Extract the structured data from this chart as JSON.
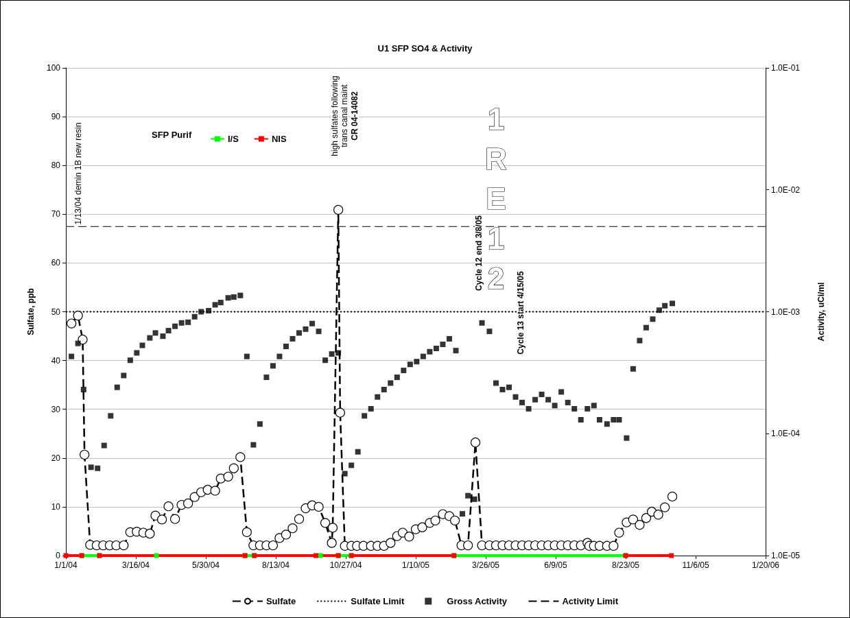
{
  "chart_data": {
    "type": "line",
    "title": "U1 SFP SO4 & Activity",
    "ylabel": "Sulfate, ppb",
    "y2label": "Activity, uCi/ml",
    "legend_title": "SFP Purif",
    "xlim": [
      "2004-01-01",
      "2006-01-20"
    ],
    "xticks": [
      {
        "value": "2004-01-01",
        "label": "1/1/04"
      },
      {
        "value": "2004-03-16",
        "label": "3/16/04"
      },
      {
        "value": "2004-05-30",
        "label": "5/30/04"
      },
      {
        "value": "2004-08-13",
        "label": "8/13/04"
      },
      {
        "value": "2004-10-27",
        "label": "10/27/04"
      },
      {
        "value": "2005-01-10",
        "label": "1/10/05"
      },
      {
        "value": "2005-03-26",
        "label": "3/26/05"
      },
      {
        "value": "2005-06-09",
        "label": "6/9/05"
      },
      {
        "value": "2005-08-23",
        "label": "8/23/05"
      },
      {
        "value": "2005-11-06",
        "label": "11/6/05"
      },
      {
        "value": "2006-01-20",
        "label": "1/20/06"
      }
    ],
    "ylim": [
      0,
      100
    ],
    "yticks": [
      0,
      10,
      20,
      30,
      40,
      50,
      60,
      70,
      80,
      90,
      100
    ],
    "y2lim": [
      1e-05,
      0.1
    ],
    "y2ticks": [
      {
        "value": 1e-05,
        "label": "1.0E-05"
      },
      {
        "value": 0.0001,
        "label": "1.0E-04"
      },
      {
        "value": 0.001,
        "label": "1.0E-03"
      },
      {
        "value": 0.01,
        "label": "1.0E-02"
      },
      {
        "value": 0.1,
        "label": "1.0E-01"
      }
    ],
    "log": "y2",
    "grid": "y",
    "legend": "bottom",
    "series": [
      {
        "name": "Sulfate",
        "color": "#000000",
        "marker": "circle",
        "line_style": "dashed",
        "x": [
          "2004-01-07",
          "2004-01-14",
          "2004-01-19",
          "2004-01-21",
          "2004-01-27",
          "2004-02-03",
          "2004-02-10",
          "2004-02-17",
          "2004-02-24",
          "2004-03-03",
          "2004-03-10",
          "2004-03-17",
          "2004-03-24",
          "2004-03-31",
          "2004-04-06",
          "2004-04-13",
          "2004-04-20",
          "2004-04-27",
          "2004-05-04",
          "2004-05-11",
          "2004-05-18",
          "2004-05-25",
          "2004-06-01",
          "2004-06-09",
          "2004-06-15",
          "2004-06-23",
          "2004-06-29",
          "2004-07-06",
          "2004-07-13",
          "2004-07-20",
          "2004-07-27",
          "2004-08-03",
          "2004-08-10",
          "2004-08-17",
          "2004-08-24",
          "2004-08-31",
          "2004-09-07",
          "2004-09-14",
          "2004-09-21",
          "2004-09-28",
          "2004-10-05",
          "2004-10-12",
          "2004-10-13",
          "2004-10-19",
          "2004-10-21",
          "2004-10-26",
          "2004-11-02",
          "2004-11-08",
          "2004-11-15",
          "2004-11-23",
          "2004-11-30",
          "2004-12-07",
          "2004-12-14",
          "2004-12-21",
          "2004-12-27",
          "2005-01-03",
          "2005-01-10",
          "2005-01-17",
          "2005-01-25",
          "2005-01-31",
          "2005-02-08",
          "2005-02-15",
          "2005-02-21",
          "2005-02-28",
          "2005-03-07",
          "2005-03-15",
          "2005-03-22",
          "2005-03-30",
          "2005-04-06",
          "2005-04-13",
          "2005-04-20",
          "2005-04-27",
          "2005-05-04",
          "2005-05-11",
          "2005-05-18",
          "2005-05-25",
          "2005-06-01",
          "2005-06-08",
          "2005-06-15",
          "2005-06-22",
          "2005-06-29",
          "2005-07-06",
          "2005-07-13",
          "2005-07-15",
          "2005-07-20",
          "2005-07-26",
          "2005-08-03",
          "2005-08-10",
          "2005-08-16",
          "2005-08-24",
          "2005-08-31",
          "2005-09-07",
          "2005-09-14",
          "2005-09-20",
          "2005-09-27",
          "2005-10-04",
          "2005-10-12"
        ],
        "values": [
          47.6,
          49.2,
          44.3,
          20.7,
          2.2,
          2.1,
          2.1,
          2.1,
          2.1,
          2.1,
          4.8,
          4.9,
          4.7,
          4.5,
          8.2,
          7.4,
          10.1,
          7.5,
          10.4,
          10.7,
          12.0,
          13.0,
          13.5,
          13.3,
          15.8,
          16.2,
          17.9,
          20.2,
          4.8,
          2.1,
          2.1,
          2.1,
          2.1,
          3.6,
          4.3,
          5.6,
          7.5,
          9.7,
          10.3,
          10.0,
          6.7,
          2.6,
          5.7,
          70.9,
          29.3,
          2.0,
          2.0,
          2.0,
          2.0,
          2.0,
          2.0,
          2.0,
          2.6,
          4.0,
          4.7,
          3.9,
          5.4,
          5.8,
          6.7,
          7.2,
          8.5,
          8.1,
          7.2,
          2.1,
          2.1,
          23.2,
          2.1,
          2.1,
          2.1,
          2.1,
          2.1,
          2.1,
          2.1,
          2.1,
          2.1,
          2.1,
          2.1,
          2.1,
          2.1,
          2.1,
          2.1,
          2.1,
          2.6,
          2.0,
          2.0,
          2.0,
          2.0,
          2.0,
          4.7,
          6.8,
          7.4,
          6.3,
          7.7,
          9.0,
          8.4,
          9.9,
          12.1
        ]
      },
      {
        "name": "Sulfate Limit",
        "color": "#000000",
        "marker": "none",
        "line_style": "dotted",
        "x": [
          "2004-01-01",
          "2006-01-20"
        ],
        "values": [
          50,
          50
        ]
      },
      {
        "name": "Gross Activity",
        "type": "scatter",
        "color": "#000000",
        "marker": "square",
        "axis": "y2",
        "x": [
          "2004-01-07",
          "2004-01-14",
          "2004-01-20",
          "2004-01-28",
          "2004-02-04",
          "2004-02-11",
          "2004-02-18",
          "2004-02-25",
          "2004-03-03",
          "2004-03-10",
          "2004-03-17",
          "2004-03-23",
          "2004-03-31",
          "2004-04-06",
          "2004-04-14",
          "2004-04-20",
          "2004-04-27",
          "2004-05-04",
          "2004-05-11",
          "2004-05-18",
          "2004-05-25",
          "2004-06-02",
          "2004-06-09",
          "2004-06-15",
          "2004-06-23",
          "2004-06-29",
          "2004-07-06",
          "2004-07-13",
          "2004-07-20",
          "2004-07-27",
          "2004-08-03",
          "2004-08-10",
          "2004-08-17",
          "2004-08-24",
          "2004-08-31",
          "2004-09-07",
          "2004-09-14",
          "2004-09-21",
          "2004-09-28",
          "2004-10-05",
          "2004-10-12",
          "2004-10-19",
          "2004-10-26",
          "2004-11-02",
          "2004-11-09",
          "2004-11-16",
          "2004-11-23",
          "2004-11-30",
          "2004-12-07",
          "2004-12-14",
          "2004-12-21",
          "2004-12-28",
          "2005-01-04",
          "2005-01-11",
          "2005-01-18",
          "2005-01-25",
          "2005-02-01",
          "2005-02-08",
          "2005-02-15",
          "2005-02-22",
          "2005-03-01",
          "2005-03-07",
          "2005-03-14",
          "2005-03-22",
          "2005-03-30",
          "2005-04-06",
          "2005-04-13",
          "2005-04-20",
          "2005-04-27",
          "2005-05-04",
          "2005-05-11",
          "2005-05-18",
          "2005-05-25",
          "2005-06-01",
          "2005-06-08",
          "2005-06-15",
          "2005-06-22",
          "2005-06-29",
          "2005-07-06",
          "2005-07-13",
          "2005-07-20",
          "2005-07-26",
          "2005-08-03",
          "2005-08-10",
          "2005-08-16",
          "2005-08-24",
          "2005-08-31",
          "2005-09-07",
          "2005-09-14",
          "2005-09-21",
          "2005-09-28",
          "2005-10-04",
          "2005-10-12"
        ],
        "values": [
          0.00043,
          0.00055,
          0.00023,
          5.3e-05,
          5.2e-05,
          8e-05,
          0.00014,
          0.00024,
          0.0003,
          0.0004,
          0.00046,
          0.00053,
          0.00061,
          0.00067,
          0.00063,
          0.0007,
          0.00076,
          0.00081,
          0.00082,
          0.00091,
          0.001,
          0.00102,
          0.00114,
          0.00119,
          0.0013,
          0.00132,
          0.00136,
          0.00043,
          8.1e-05,
          0.00012,
          0.00029,
          0.00036,
          0.00043,
          0.00052,
          0.0006,
          0.00067,
          0.00072,
          0.0008,
          0.00069,
          0.0004,
          0.00045,
          0.00046,
          4.7e-05,
          5.5e-05,
          7.1e-05,
          0.00014,
          0.00016,
          0.0002,
          0.00023,
          0.00026,
          0.00029,
          0.00033,
          0.00037,
          0.00039,
          0.00043,
          0.00047,
          0.0005,
          0.00054,
          0.0006,
          0.00048,
          2.2e-05,
          3.1e-05,
          2.9e-05,
          0.00081,
          0.00069,
          0.00026,
          0.00023,
          0.00024,
          0.0002,
          0.00018,
          0.00016,
          0.00019,
          0.00021,
          0.00019,
          0.00017,
          0.00022,
          0.00018,
          0.00016,
          0.00013,
          0.00016,
          0.00017,
          0.00013,
          0.00012,
          0.00013,
          0.00013,
          9.2e-05,
          0.00034,
          0.00058,
          0.00074,
          0.00087,
          0.00103,
          0.00112,
          0.00117
        ]
      },
      {
        "name": "Activity Limit",
        "color": "#000000",
        "marker": "none",
        "line_style": "dashed",
        "axis": "y2",
        "x": [
          "2004-01-01",
          "2006-01-20"
        ],
        "values": [
          0.005,
          0.005
        ]
      },
      {
        "name": "I/S",
        "color": "#00ff00",
        "marker": "square",
        "line_style": "solid",
        "x": [
          "2004-01-18",
          "2004-02-06",
          "2004-03-01",
          "2004-04-07",
          "2004-05-01",
          "2004-07-11",
          "2004-07-21",
          "2004-08-20",
          "2004-09-30",
          "2004-10-10",
          "2004-10-19",
          "2004-11-02",
          "2004-12-01",
          "2005-02-20",
          "2005-08-23"
        ],
        "values": [
          0,
          0,
          null,
          0,
          null,
          0,
          0,
          null,
          0,
          null,
          0,
          0,
          null,
          0,
          0
        ]
      },
      {
        "name": "NIS",
        "color": "#ff0000",
        "marker": "square",
        "line_style": "solid",
        "x": [
          "2004-01-01",
          "2004-01-18",
          "2004-01-25",
          "2004-02-06",
          "2004-07-11",
          "2004-07-15",
          "2004-07-21",
          "2004-09-25",
          "2004-10-19",
          "2004-10-25",
          "2004-11-02",
          "2005-02-20",
          "2005-05-01",
          "2005-08-23",
          "2005-10-11"
        ],
        "values": [
          0,
          0,
          null,
          0,
          0,
          null,
          0,
          0,
          0,
          null,
          0,
          0,
          null,
          0,
          0
        ]
      }
    ],
    "annotations": [
      "1/13/04 demin 1B new resin",
      "high sulfates following",
      "trans canal maint",
      "CR 04-14082",
      "1RE12",
      "Cycle 12 end 3/8/05",
      "Cycle 13 start 4/15/05"
    ]
  }
}
